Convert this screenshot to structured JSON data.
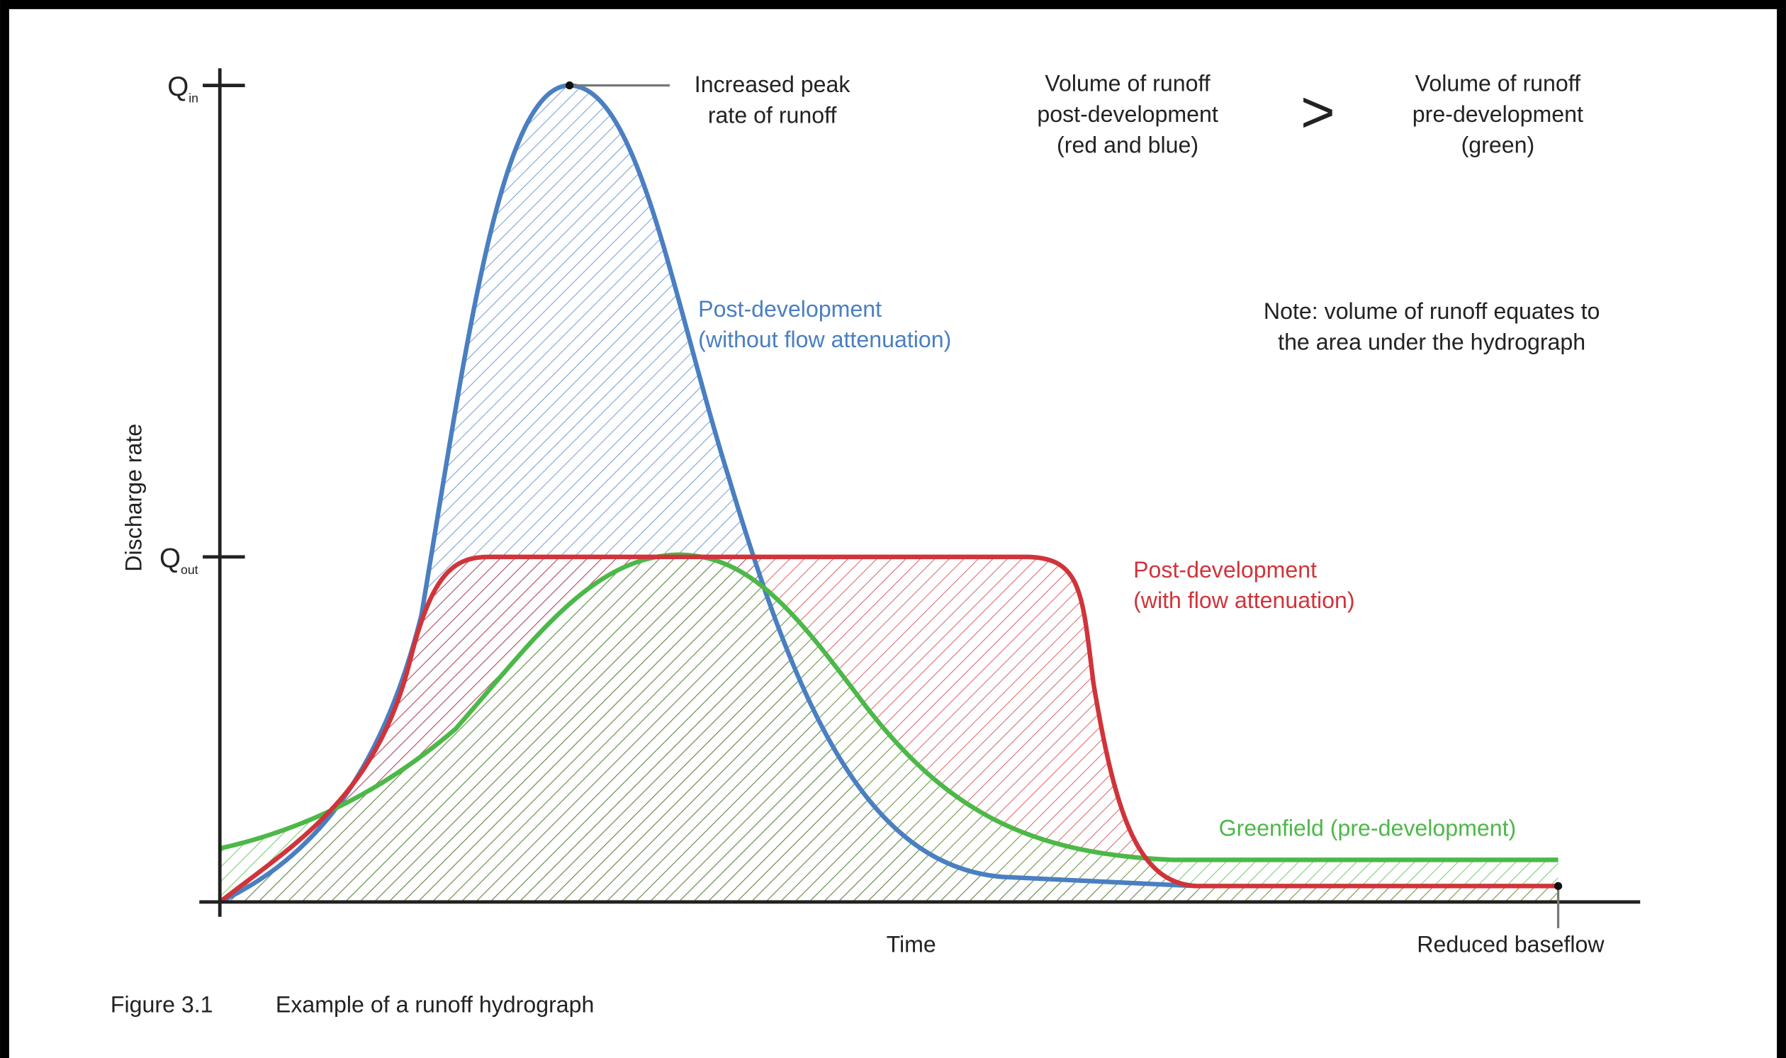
{
  "axes": {
    "y_label": "Discharge rate",
    "x_label": "Time",
    "baseline_label": "Reduced baseflow",
    "y_ticks": [
      {
        "symbol": "Q",
        "subscript": "in"
      },
      {
        "symbol": "Q",
        "subscript": "out"
      }
    ]
  },
  "annotations": {
    "peak": {
      "lines": [
        "Increased peak",
        "rate of runoff"
      ]
    },
    "volume_post": {
      "lines": [
        "Volume of runoff",
        "post-development",
        "(red and blue)"
      ]
    },
    "comparison": ">",
    "volume_pre": {
      "lines": [
        "Volume of runoff",
        "pre-development",
        "(green)"
      ]
    },
    "note": {
      "lines": [
        "Note: volume of runoff equates to",
        "the area under the hydrograph"
      ]
    }
  },
  "curves": [
    {
      "lines": [
        "Post-development",
        "(without flow attenuation)"
      ],
      "color": "#4a7fc1"
    },
    {
      "lines": [
        "Post-development",
        "(with flow attenuation)"
      ],
      "color": "#d0343a"
    },
    {
      "lines": [
        "Greenfield (pre-development)"
      ],
      "color": "#4cb848"
    }
  ],
  "caption": {
    "number": "Figure 3.1",
    "text": "Example of a runoff hydrograph"
  }
}
